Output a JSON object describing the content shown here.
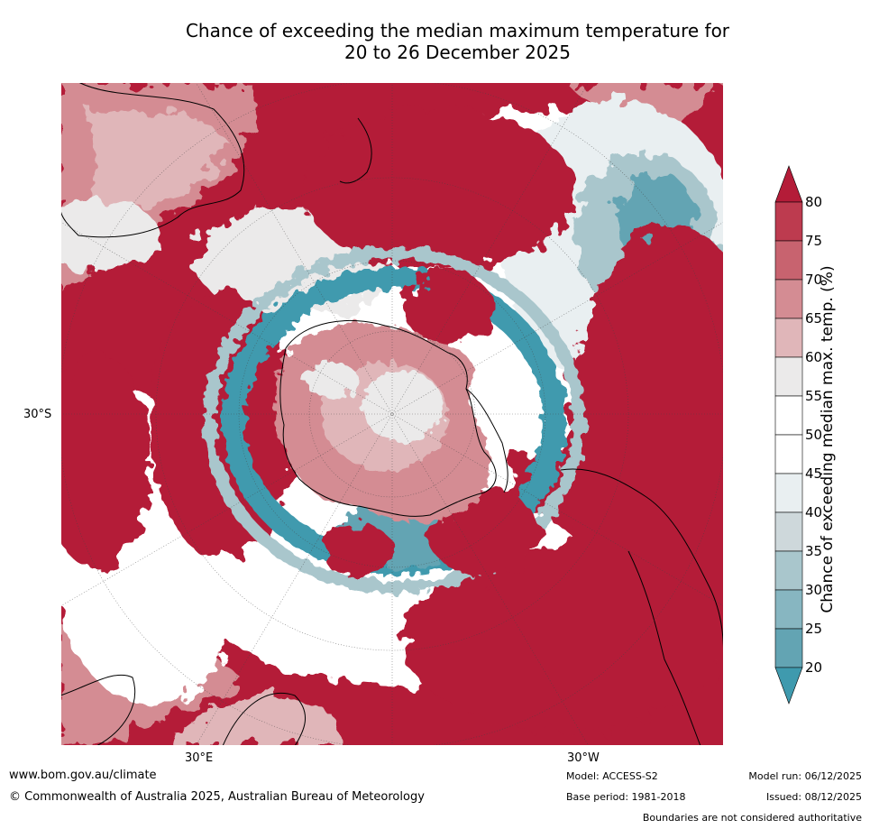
{
  "title": {
    "line1": "Chance of exceeding the median maximum temperature for",
    "line2": "20 to 26 December 2025"
  },
  "map": {
    "projection": "south-polar stereographic",
    "lat_label": "30°S",
    "lon_labels": [
      "30°E",
      "30°W"
    ]
  },
  "colorbar": {
    "label": "Chance of exceeding median max. temp. (%)",
    "ticks": [
      "80",
      "75",
      "70",
      "65",
      "60",
      "55",
      "50",
      "45",
      "40",
      "35",
      "30",
      "25",
      "20"
    ],
    "colors": [
      "#b41c38",
      "#bd3b4f",
      "#c8636f",
      "#d48c93",
      "#e0b6b9",
      "#ebeaea",
      "#ffffff",
      "#ffffff",
      "#e9eff1",
      "#ced8db",
      "#a9c6cc",
      "#87b6c1",
      "#63a4b3",
      "#3f9aae"
    ],
    "extend_high_color": "#b41c38",
    "extend_low_color": "#3f9aae"
  },
  "footer": {
    "website": "www.bom.gov.au/climate",
    "copyright": "© Commonwealth of Australia 2025, Australian Bureau of Meteorology",
    "model": "Model: ACCESS-S2",
    "base_period": "Base period: 1981-2018",
    "model_run": "Model run: 06/12/2025",
    "issued": "Issued: 08/12/2025",
    "disclaimer": "Boundaries are not considered authoritative"
  }
}
